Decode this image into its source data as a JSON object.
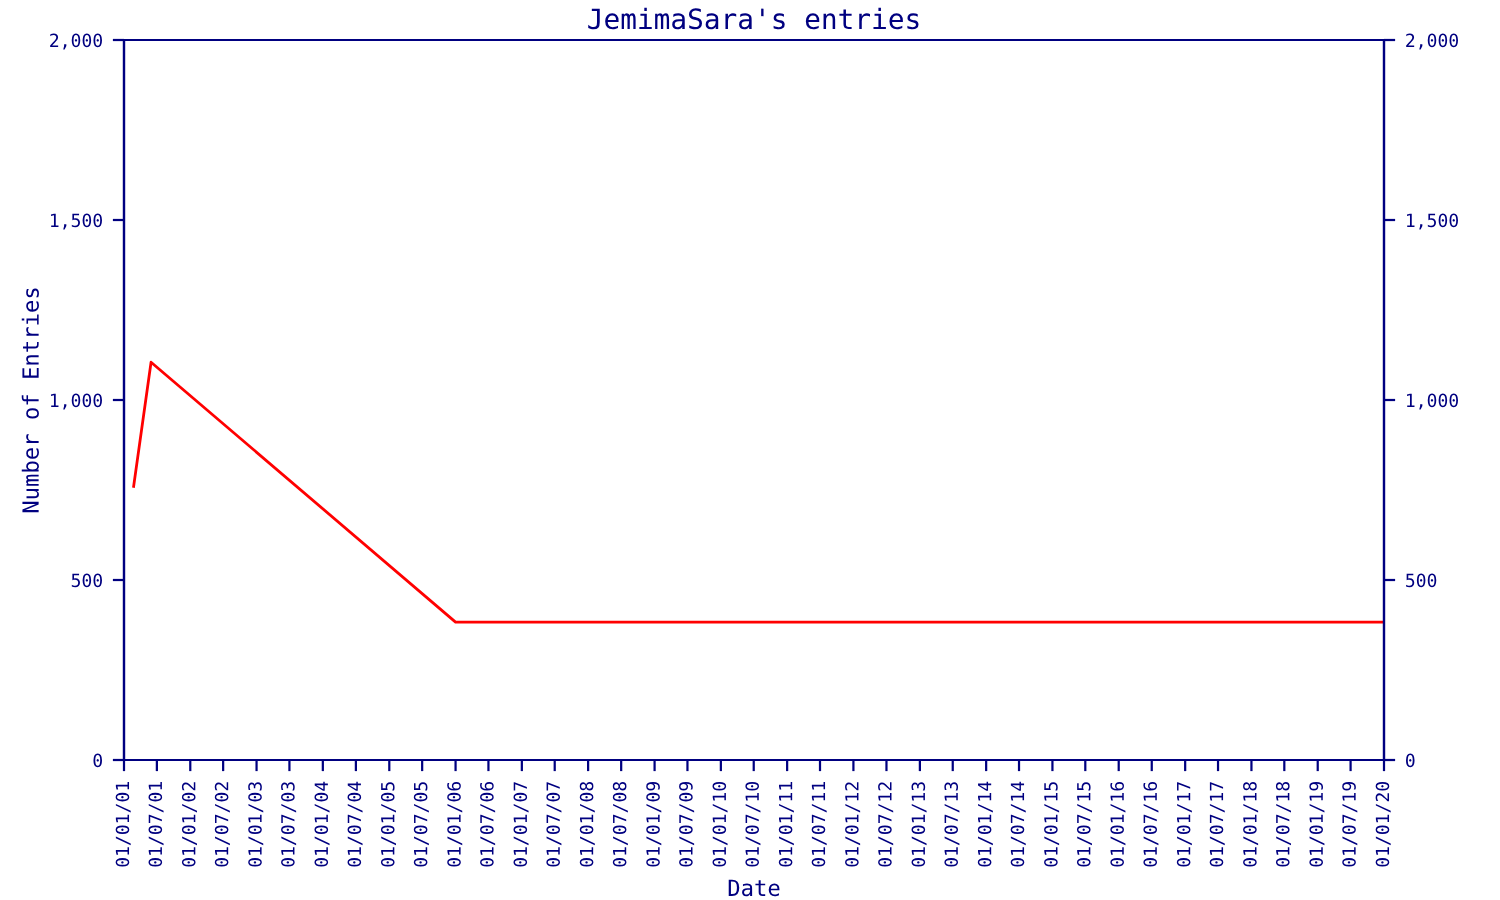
{
  "chart_data": {
    "type": "line",
    "title": "JemimaSara's entries",
    "xlabel": "Date",
    "ylabel": "Number of Entries",
    "x": [
      "2001-02-23",
      "2001-05-30",
      "2006-01-01",
      "2020-01-01"
    ],
    "series": [
      {
        "color": "#ff0000",
        "values": [
          760,
          1105,
          383,
          383
        ]
      }
    ],
    "xlim": [
      "2001-01-01",
      "2020-01-01"
    ],
    "xticks": [
      {
        "value": "2001-01-01",
        "label": "01/01/01"
      },
      {
        "value": "2001-07-01",
        "label": "01/07/01"
      },
      {
        "value": "2002-01-01",
        "label": "01/01/02"
      },
      {
        "value": "2002-07-01",
        "label": "01/07/02"
      },
      {
        "value": "2003-01-01",
        "label": "01/01/03"
      },
      {
        "value": "2003-07-01",
        "label": "01/07/03"
      },
      {
        "value": "2004-01-01",
        "label": "01/01/04"
      },
      {
        "value": "2004-07-01",
        "label": "01/07/04"
      },
      {
        "value": "2005-01-01",
        "label": "01/01/05"
      },
      {
        "value": "2005-07-01",
        "label": "01/07/05"
      },
      {
        "value": "2006-01-01",
        "label": "01/01/06"
      },
      {
        "value": "2006-07-01",
        "label": "01/07/06"
      },
      {
        "value": "2007-01-01",
        "label": "01/01/07"
      },
      {
        "value": "2007-07-01",
        "label": "01/07/07"
      },
      {
        "value": "2008-01-01",
        "label": "01/01/08"
      },
      {
        "value": "2008-07-01",
        "label": "01/07/08"
      },
      {
        "value": "2009-01-01",
        "label": "01/01/09"
      },
      {
        "value": "2009-07-01",
        "label": "01/07/09"
      },
      {
        "value": "2010-01-01",
        "label": "01/01/10"
      },
      {
        "value": "2010-07-01",
        "label": "01/07/10"
      },
      {
        "value": "2011-01-01",
        "label": "01/01/11"
      },
      {
        "value": "2011-07-01",
        "label": "01/07/11"
      },
      {
        "value": "2012-01-01",
        "label": "01/01/12"
      },
      {
        "value": "2012-07-01",
        "label": "01/07/12"
      },
      {
        "value": "2013-01-01",
        "label": "01/01/13"
      },
      {
        "value": "2013-07-01",
        "label": "01/07/13"
      },
      {
        "value": "2014-01-01",
        "label": "01/01/14"
      },
      {
        "value": "2014-07-01",
        "label": "01/07/14"
      },
      {
        "value": "2015-01-01",
        "label": "01/01/15"
      },
      {
        "value": "2015-07-01",
        "label": "01/07/15"
      },
      {
        "value": "2016-01-01",
        "label": "01/01/16"
      },
      {
        "value": "2016-07-01",
        "label": "01/07/16"
      },
      {
        "value": "2017-01-01",
        "label": "01/01/17"
      },
      {
        "value": "2017-07-01",
        "label": "01/07/17"
      },
      {
        "value": "2018-01-01",
        "label": "01/01/18"
      },
      {
        "value": "2018-07-01",
        "label": "01/07/18"
      },
      {
        "value": "2019-01-01",
        "label": "01/01/19"
      },
      {
        "value": "2019-07-01",
        "label": "01/07/19"
      },
      {
        "value": "2020-01-01",
        "label": "01/01/20"
      }
    ],
    "ylim": [
      0,
      2000
    ],
    "yticks": [
      0,
      500,
      {
        "value": 1000,
        "label": "1,000"
      },
      {
        "value": 1500,
        "label": "1,500"
      },
      {
        "value": 2000,
        "label": "2,000"
      }
    ],
    "y2lim": [
      0,
      2000
    ],
    "y2ticks": [
      0,
      500,
      {
        "value": 1000,
        "label": "1,000"
      },
      {
        "value": 1500,
        "label": "1,500"
      },
      {
        "value": 2000,
        "label": "2,000"
      }
    ],
    "grid": false,
    "legend": false,
    "marker": "none",
    "line_style": "solid"
  }
}
